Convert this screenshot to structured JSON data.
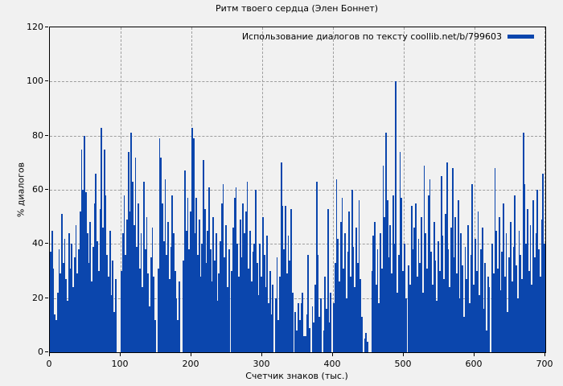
{
  "colors": {
    "background": "#f1f1f1",
    "grid": "#9e9e9e",
    "axis": "#000000",
    "bar": "#0b46ad"
  },
  "chart_data": {
    "type": "bar",
    "title": "Ритм твоего сердца (Элен Боннет)",
    "legend": "Использование диалогов по тексту coollib.net/b/799603",
    "xlabel": "Счетчик знаков (тыс.)",
    "ylabel": "% диалогов",
    "xlim": [
      0,
      700
    ],
    "ylim": [
      0,
      120
    ],
    "x_ticks": [
      0,
      100,
      200,
      300,
      400,
      500,
      600,
      700
    ],
    "y_ticks": [
      0,
      20,
      40,
      60,
      80,
      100,
      120
    ],
    "grid": true,
    "legend_position": "top-right-inside",
    "bar_color": "#0b46ad",
    "x_start": 0,
    "x_step": 2,
    "values": [
      37,
      45,
      31,
      14,
      12,
      22,
      38,
      29,
      51,
      33,
      42,
      27,
      19,
      44,
      31,
      40,
      24,
      35,
      47,
      29,
      38,
      52,
      75,
      60,
      80,
      59,
      44,
      33,
      48,
      26,
      39,
      55,
      66,
      41,
      30,
      53,
      83,
      46,
      75,
      58,
      36,
      28,
      45,
      21,
      34,
      15,
      27,
      0,
      0,
      0,
      30,
      44,
      58,
      36,
      49,
      74,
      52,
      81,
      63,
      47,
      72,
      39,
      55,
      31,
      44,
      24,
      63,
      38,
      50,
      29,
      17,
      35,
      46,
      28,
      12,
      0,
      31,
      79,
      72,
      55,
      41,
      64,
      36,
      48,
      27,
      39,
      58,
      44,
      30,
      20,
      12,
      26,
      0,
      0,
      34,
      67,
      45,
      57,
      38,
      52,
      83,
      79,
      44,
      57,
      36,
      49,
      28,
      40,
      71,
      53,
      33,
      45,
      61,
      38,
      26,
      50,
      34,
      44,
      19,
      29,
      41,
      55,
      62,
      35,
      47,
      24,
      38,
      0,
      30,
      46,
      57,
      61,
      40,
      28,
      49,
      35,
      55,
      44,
      52,
      63,
      31,
      45,
      26,
      37,
      40,
      60,
      33,
      21,
      40,
      28,
      50,
      36,
      24,
      43,
      18,
      30,
      14,
      25,
      0,
      20,
      35,
      12,
      28,
      70,
      54,
      38,
      54,
      29,
      43,
      34,
      53,
      22,
      0,
      15,
      8,
      18,
      12,
      18,
      22,
      6,
      6,
      14,
      36,
      9,
      0,
      17,
      11,
      25,
      63,
      36,
      13,
      20,
      0,
      8,
      28,
      16,
      53,
      11,
      22,
      0,
      18,
      33,
      64,
      42,
      26,
      48,
      57,
      31,
      44,
      20,
      37,
      52,
      28,
      60,
      39,
      24,
      46,
      33,
      56,
      27,
      13,
      0,
      5,
      7,
      4,
      0,
      0,
      30,
      43,
      48,
      25,
      38,
      18,
      44,
      31,
      69,
      50,
      81,
      56,
      35,
      47,
      29,
      58,
      40,
      100,
      22,
      36,
      74,
      57,
      30,
      40,
      20,
      0,
      32,
      25,
      54,
      38,
      46,
      55,
      28,
      42,
      33,
      50,
      22,
      69,
      44,
      31,
      58,
      64,
      37,
      25,
      48,
      34,
      19,
      41,
      30,
      65,
      43,
      27,
      51,
      70,
      38,
      24,
      46,
      68,
      35,
      50,
      29,
      56,
      20,
      44,
      32,
      13,
      39,
      27,
      47,
      18,
      36,
      62,
      25,
      42,
      30,
      52,
      21,
      38,
      46,
      16,
      33,
      8,
      28,
      24,
      0,
      40,
      29,
      68,
      45,
      31,
      50,
      23,
      37,
      55,
      28,
      44,
      15,
      35,
      48,
      26,
      39,
      58,
      32,
      20,
      45,
      36,
      27,
      81,
      62,
      40,
      53,
      30,
      47,
      25,
      56,
      35,
      44,
      60,
      38,
      28,
      49,
      66,
      40
    ]
  }
}
